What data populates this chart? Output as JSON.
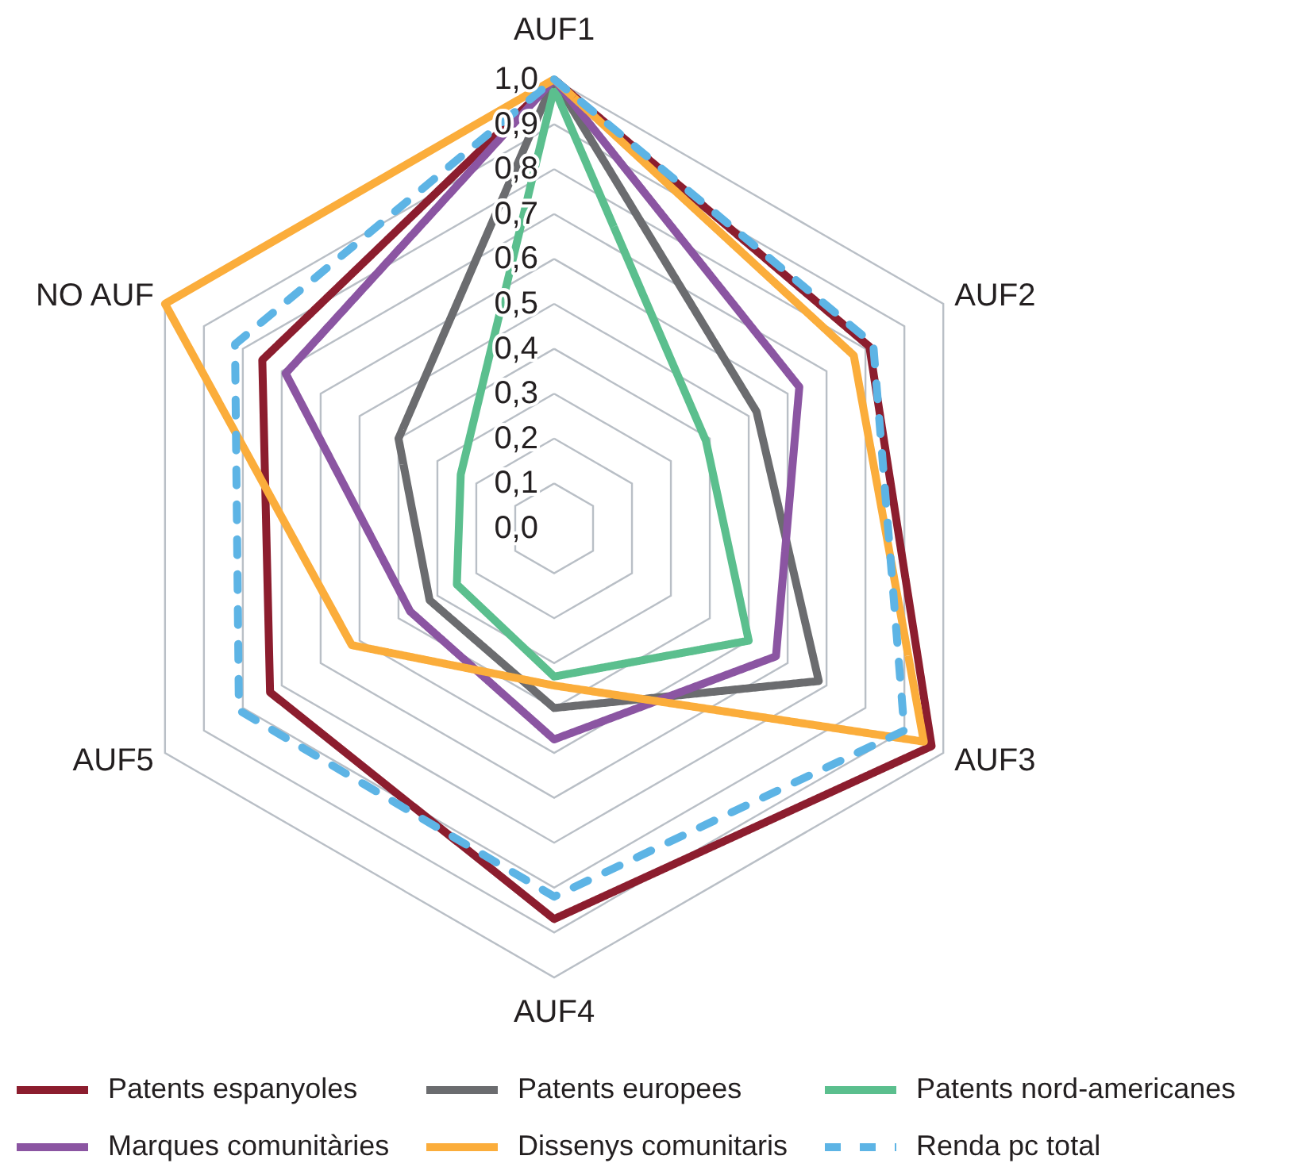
{
  "chart_data": {
    "type": "radar",
    "categories": [
      "AUF1",
      "AUF2",
      "AUF3",
      "AUF4",
      "AUF5",
      "NO AUF"
    ],
    "ylim": [
      0,
      1
    ],
    "yticks": [
      {
        "value": 0,
        "label": "0,0"
      },
      {
        "value": 0.1,
        "label": "0,1"
      },
      {
        "value": 0.2,
        "label": "0,2"
      },
      {
        "value": 0.3,
        "label": "0,3"
      },
      {
        "value": 0.4,
        "label": "0,4"
      },
      {
        "value": 0.5,
        "label": "0,5"
      },
      {
        "value": 0.6,
        "label": "0,6"
      },
      {
        "value": 0.7,
        "label": "0,7"
      },
      {
        "value": 0.8,
        "label": "0,8"
      },
      {
        "value": 0.9,
        "label": "0,9"
      },
      {
        "value": 1,
        "label": "1,0"
      }
    ],
    "grid": true,
    "legend": "bottom",
    "series": [
      {
        "name": "Patents espanyoles",
        "color": "#8c1d2e",
        "values": [
          1.0,
          0.81,
          0.97,
          0.87,
          0.73,
          0.75
        ]
      },
      {
        "name": "Patents europees",
        "color": "#6b6c6f",
        "values": [
          1.0,
          0.52,
          0.68,
          0.4,
          0.32,
          0.4
        ]
      },
      {
        "name": "Patents nord-americanes",
        "color": "#5bbf8e",
        "values": [
          0.98,
          0.39,
          0.5,
          0.33,
          0.25,
          0.24
        ]
      },
      {
        "name": "Marques comunitàries",
        "color": "#8b55a2",
        "values": [
          1.0,
          0.63,
          0.57,
          0.47,
          0.37,
          0.69
        ]
      },
      {
        "name": "Dissenys comunitaris",
        "color": "#fbad3b",
        "values": [
          1.0,
          0.77,
          0.95,
          0.35,
          0.52,
          1.0
        ]
      },
      {
        "name": "Renda pc total",
        "color": "#5db4e5",
        "line_style": "dashed",
        "values": [
          1.0,
          0.82,
          0.9,
          0.82,
          0.81,
          0.82
        ]
      }
    ]
  }
}
